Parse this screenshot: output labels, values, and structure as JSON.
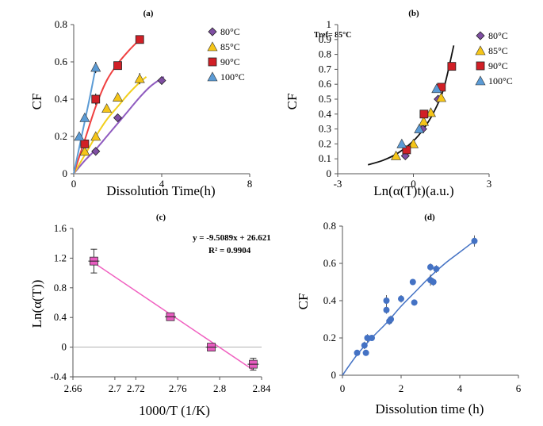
{
  "colors": {
    "80": "#7f4ea3",
    "85": "#f5c518",
    "90": "#d11f26",
    "100": "#5b9bd5",
    "fit_a_80": "#8f5bbf",
    "fit_a_85": "#f2cf1d",
    "fit_a_90": "#ef4040",
    "fit_a_100": "#5b9bd5",
    "line_c": "#f060c0",
    "marker_c": "#e85bc0",
    "marker_d": "#4472c4"
  },
  "chart_data": [
    {
      "panel": "a",
      "type": "scatter",
      "title": "(a)",
      "xlabel": "Dissolution Time(h)",
      "ylabel": "CF",
      "xlim": [
        0,
        8
      ],
      "ylim": [
        0,
        0.8
      ],
      "xticks": [
        "0",
        "4",
        "8"
      ],
      "yticks": [
        "0",
        "0.2",
        "0.4",
        "0.6",
        "0.8"
      ],
      "legend": [
        "80°C",
        "85°C",
        "90°C",
        "100°C"
      ],
      "legend_position": "top-right",
      "series": [
        {
          "name": "80°C",
          "key": "80",
          "marker": "diamond",
          "x": [
            1,
            2,
            4
          ],
          "y": [
            0.12,
            0.3,
            0.5
          ],
          "err": [
            0.01,
            0.02,
            0.02
          ]
        },
        {
          "name": "85°C",
          "key": "85",
          "marker": "triangle",
          "x": [
            0.5,
            1,
            1.5,
            2,
            3
          ],
          "y": [
            0.12,
            0.2,
            0.35,
            0.41,
            0.51
          ],
          "err": [
            0.02,
            0.01,
            0.01,
            0.02,
            0.03
          ]
        },
        {
          "name": "90°C",
          "key": "90",
          "marker": "square",
          "x": [
            0.5,
            1,
            2,
            3
          ],
          "y": [
            0.16,
            0.4,
            0.58,
            0.72
          ],
          "err": [
            0.02,
            0.03,
            0.02,
            0.02
          ]
        },
        {
          "name": "100°C",
          "key": "100",
          "marker": "triangle",
          "x": [
            0.25,
            0.5,
            1
          ],
          "y": [
            0.2,
            0.3,
            0.57
          ],
          "err": [
            0.01,
            0.02,
            0.03
          ]
        }
      ],
      "fits": [
        {
          "key": "80",
          "x": [
            0,
            0.5,
            1,
            1.5,
            2,
            2.5,
            3,
            3.5,
            4.1
          ],
          "y": [
            0,
            0.07,
            0.13,
            0.2,
            0.27,
            0.34,
            0.41,
            0.47,
            0.52
          ]
        },
        {
          "key": "85",
          "x": [
            0,
            0.5,
            1,
            1.5,
            2,
            2.5,
            3,
            3.3
          ],
          "y": [
            0,
            0.1,
            0.2,
            0.29,
            0.36,
            0.43,
            0.49,
            0.52
          ]
        },
        {
          "key": "90",
          "x": [
            0,
            0.5,
            1,
            1.5,
            2,
            2.5,
            3
          ],
          "y": [
            0,
            0.18,
            0.36,
            0.5,
            0.59,
            0.66,
            0.72
          ]
        },
        {
          "key": "100",
          "x": [
            0,
            0.25,
            0.5,
            0.75,
            1
          ],
          "y": [
            0,
            0.14,
            0.28,
            0.42,
            0.57
          ]
        }
      ]
    },
    {
      "panel": "b",
      "type": "scatter",
      "title": "(b)",
      "annotation": "Tref= 85°C",
      "xlabel": "Ln(α(T)t)(a.u.)",
      "ylabel": "CF",
      "xlim": [
        -3,
        3
      ],
      "ylim": [
        0,
        1
      ],
      "xticks": [
        "-3",
        "0",
        "3"
      ],
      "yticks": [
        "0",
        "0.1",
        "0.2",
        "0.3",
        "0.4",
        "0.5",
        "0.6",
        "0.7",
        "0.8",
        "0.9",
        "1"
      ],
      "legend": [
        "80°C",
        "85°C",
        "90°C",
        "100°C"
      ],
      "legend_position": "top-right",
      "series": [
        {
          "name": "80°C",
          "key": "80",
          "marker": "diamond",
          "x": [
            -0.32,
            0.37,
            0.98
          ],
          "y": [
            0.12,
            0.3,
            0.5
          ]
        },
        {
          "name": "85°C",
          "key": "85",
          "marker": "triangle",
          "x": [
            -0.69,
            0.0,
            0.41,
            0.69,
            1.1
          ],
          "y": [
            0.12,
            0.2,
            0.35,
            0.41,
            0.51
          ]
        },
        {
          "name": "90°C",
          "key": "90",
          "marker": "square",
          "x": [
            -0.27,
            0.42,
            1.11,
            1.52
          ],
          "y": [
            0.16,
            0.4,
            0.58,
            0.72
          ]
        },
        {
          "name": "100°C",
          "key": "100",
          "marker": "triangle",
          "x": [
            -0.46,
            0.23,
            0.92
          ],
          "y": [
            0.2,
            0.3,
            0.57
          ]
        }
      ],
      "fit": {
        "x": [
          -1.8,
          -1.2,
          -0.6,
          0,
          0.4,
          0.8,
          1.2,
          1.6
        ],
        "y": [
          0.06,
          0.09,
          0.14,
          0.22,
          0.3,
          0.41,
          0.57,
          0.86
        ]
      }
    },
    {
      "panel": "c",
      "type": "scatter",
      "title": "(c)",
      "equation": "y = -9.5089x + 26.621",
      "r2": "R² = 0.9904",
      "xlabel": "1000/T (1/K)",
      "ylabel": "Ln(α(T))",
      "xlim": [
        2.66,
        2.84
      ],
      "ylim": [
        -0.4,
        1.6
      ],
      "xticks": [
        "2.66",
        "2.7",
        "2.72",
        "2.76",
        "2.8",
        "2.84"
      ],
      "xtick_values": [
        2.66,
        2.7,
        2.72,
        2.76,
        2.8,
        2.84
      ],
      "yticks": [
        "-0.4",
        "0",
        "0.4",
        "0.8",
        "1.2",
        "1.6"
      ],
      "points": {
        "x": [
          2.68,
          2.753,
          2.792,
          2.832
        ],
        "y": [
          1.16,
          0.41,
          0,
          -0.23
        ],
        "err": [
          0.16,
          0.03,
          0.02,
          0.08
        ]
      },
      "fit": {
        "slope": -9.5089,
        "intercept": 26.621,
        "x": [
          2.68,
          2.832
        ]
      }
    },
    {
      "panel": "d",
      "type": "scatter",
      "title": "(d)",
      "xlabel": "Dissolution time (h)",
      "ylabel": "CF",
      "xlim": [
        0,
        6
      ],
      "ylim": [
        0,
        0.8
      ],
      "xticks": [
        "0",
        "2",
        "4",
        "6"
      ],
      "yticks": [
        "0",
        "0.2",
        "0.4",
        "0.6",
        "0.8"
      ],
      "points": {
        "x": [
          0.5,
          0.75,
          0.8,
          0.85,
          1.0,
          1.5,
          1.5,
          1.6,
          1.65,
          2.0,
          2.4,
          2.45,
          3.0,
          3.0,
          3.1,
          3.2,
          4.5
        ],
        "y": [
          0.12,
          0.16,
          0.12,
          0.2,
          0.2,
          0.4,
          0.35,
          0.29,
          0.3,
          0.41,
          0.5,
          0.39,
          0.58,
          0.51,
          0.5,
          0.57,
          0.72
        ],
        "err": [
          0.01,
          0.02,
          0.01,
          0.02,
          0.01,
          0.03,
          0.02,
          0.02,
          0.02,
          0.02,
          0.01,
          0.01,
          0.02,
          0.03,
          0.02,
          0.02,
          0.03
        ]
      },
      "fit": {
        "x": [
          0,
          0.5,
          1,
          1.5,
          2,
          2.5,
          3,
          3.5,
          4,
          4.5
        ],
        "y": [
          0,
          0.11,
          0.2,
          0.28,
          0.37,
          0.45,
          0.53,
          0.6,
          0.66,
          0.72
        ]
      }
    }
  ]
}
